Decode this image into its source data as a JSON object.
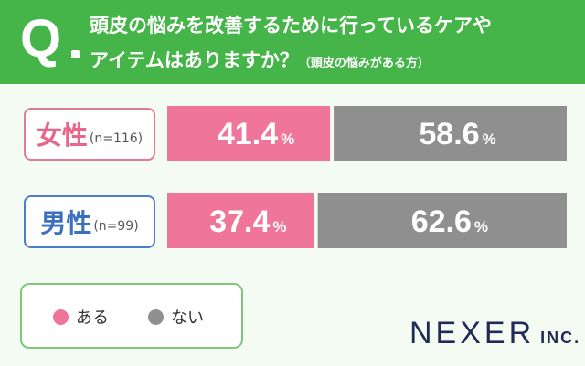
{
  "header": {
    "q_mark": "Q",
    "line1": "頭皮の悩みを改善するために行っているケアや",
    "line2": "アイテムはありますか？",
    "note": "（頭皮の悩みがある方）"
  },
  "groups": [
    {
      "label": "女性",
      "n": "(n=116)"
    },
    {
      "label": "男性",
      "n": "(n=99)"
    }
  ],
  "legend": [
    {
      "label": "ある",
      "color": "#f0759a"
    },
    {
      "label": "ない",
      "color": "#8f8f8f"
    }
  ],
  "chart_data": {
    "type": "bar",
    "orientation": "horizontal",
    "stacked": true,
    "unit": "%",
    "categories": [
      "女性(n=116)",
      "男性(n=99)"
    ],
    "series": [
      {
        "name": "ある",
        "values": [
          41.4,
          37.4
        ],
        "labels": [
          "41.4",
          "37.4"
        ],
        "color": "#f0759a"
      },
      {
        "name": "ない",
        "values": [
          58.6,
          62.6
        ],
        "labels": [
          "58.6",
          "62.6"
        ],
        "color": "#8f8f8f"
      }
    ]
  },
  "logo": {
    "main": "NEXER",
    "suffix": "INC."
  }
}
